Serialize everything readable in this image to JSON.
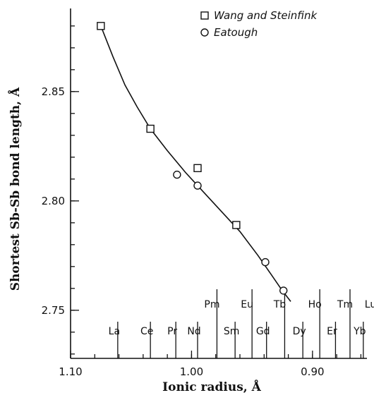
{
  "chart_data": {
    "type": "scatter",
    "xlabel": "Ionic radius, Å",
    "ylabel": "Shortest Sb-Sb bond length, Å",
    "xlim": [
      1.1,
      0.855
    ],
    "ylim": [
      2.728,
      2.888
    ],
    "x_reversed": true,
    "x_ticks": [
      {
        "value": 1.1,
        "label": "1.10"
      },
      {
        "value": 1.0,
        "label": "1.00"
      },
      {
        "value": 0.9,
        "label": "0.90"
      }
    ],
    "y_ticks": [
      {
        "value": 2.75,
        "label": "2.75"
      },
      {
        "value": 2.8,
        "label": "2.80"
      },
      {
        "value": 2.85,
        "label": "2.85"
      }
    ],
    "elements": [
      {
        "symbol": "La",
        "radius": 1.061,
        "row": "lower"
      },
      {
        "symbol": "Ce",
        "radius": 1.034,
        "row": "lower"
      },
      {
        "symbol": "Pr",
        "radius": 1.013,
        "row": "lower"
      },
      {
        "symbol": "Nd",
        "radius": 0.995,
        "row": "lower"
      },
      {
        "symbol": "Pm",
        "radius": 0.979,
        "row": "upper"
      },
      {
        "symbol": "Sm",
        "radius": 0.964,
        "row": "lower"
      },
      {
        "symbol": "Eu",
        "radius": 0.95,
        "row": "upper"
      },
      {
        "symbol": "Gd",
        "radius": 0.938,
        "row": "lower"
      },
      {
        "symbol": "Tb",
        "radius": 0.923,
        "row": "upper"
      },
      {
        "symbol": "Dy",
        "radius": 0.908,
        "row": "lower"
      },
      {
        "symbol": "Ho",
        "radius": 0.894,
        "row": "upper"
      },
      {
        "symbol": "Er",
        "radius": 0.881,
        "row": "lower"
      },
      {
        "symbol": "Tm",
        "radius": 0.869,
        "row": "upper"
      },
      {
        "symbol": "Yb",
        "radius": 0.858,
        "row": "lower"
      },
      {
        "symbol": "Lu",
        "radius": 0.848,
        "row": "upper"
      }
    ],
    "series": [
      {
        "name": "Wang and Steinfink",
        "marker": "square",
        "points": [
          {
            "x": 1.075,
            "y": 2.88
          },
          {
            "x": 1.034,
            "y": 2.833
          },
          {
            "x": 0.995,
            "y": 2.815
          },
          {
            "x": 0.963,
            "y": 2.789
          }
        ]
      },
      {
        "name": "Eatough",
        "marker": "circle",
        "points": [
          {
            "x": 1.012,
            "y": 2.812
          },
          {
            "x": 0.995,
            "y": 2.807
          },
          {
            "x": 0.939,
            "y": 2.772
          },
          {
            "x": 0.924,
            "y": 2.759
          }
        ]
      }
    ],
    "fit_curve": [
      {
        "x": 1.075,
        "y": 2.88
      },
      {
        "x": 1.065,
        "y": 2.866
      },
      {
        "x": 1.055,
        "y": 2.853
      },
      {
        "x": 1.045,
        "y": 2.843
      },
      {
        "x": 1.034,
        "y": 2.833
      },
      {
        "x": 1.02,
        "y": 2.823
      },
      {
        "x": 1.005,
        "y": 2.813
      },
      {
        "x": 0.99,
        "y": 2.804
      },
      {
        "x": 0.975,
        "y": 2.795
      },
      {
        "x": 0.96,
        "y": 2.786
      },
      {
        "x": 0.945,
        "y": 2.775
      },
      {
        "x": 0.935,
        "y": 2.767
      },
      {
        "x": 0.925,
        "y": 2.759
      },
      {
        "x": 0.918,
        "y": 2.754
      }
    ],
    "grid": false,
    "legend_position": "top-right"
  }
}
